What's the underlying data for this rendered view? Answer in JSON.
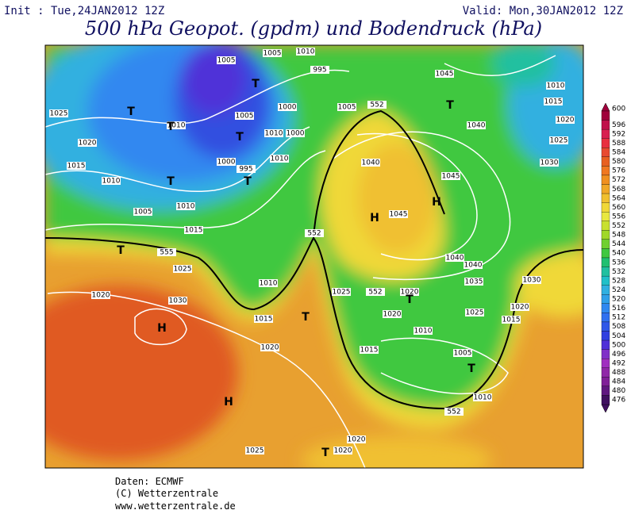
{
  "header": {
    "init": "Init : Tue,24JAN2012 12Z",
    "valid": "Valid: Mon,30JAN2012 12Z",
    "title": "500 hPa Geopot. (gpdm) und Bodendruck (hPa)"
  },
  "colorbar": {
    "levels": [
      600,
      596,
      592,
      588,
      584,
      580,
      576,
      572,
      568,
      564,
      560,
      556,
      552,
      548,
      544,
      540,
      536,
      532,
      528,
      524,
      520,
      516,
      512,
      508,
      504,
      500,
      496,
      492,
      488,
      484,
      480,
      476
    ],
    "colors": [
      "#a0003c",
      "#c0104a",
      "#d82050",
      "#e83040",
      "#e84a30",
      "#e86020",
      "#f07820",
      "#f09020",
      "#f0a828",
      "#f0c030",
      "#f0d838",
      "#e8e840",
      "#c8e030",
      "#a0d828",
      "#70d030",
      "#40c840",
      "#20c070",
      "#20c0a0",
      "#20c0c8",
      "#30b0e0",
      "#30a0e8",
      "#3088f0",
      "#3070f0",
      "#3058e8",
      "#3040e0",
      "#5030d8",
      "#8030c8",
      "#a030c0",
      "#9028a8",
      "#802098",
      "#601880",
      "#401060"
    ]
  },
  "map": {
    "isobar_labels": [
      1005,
      1005,
      1010,
      995,
      1005,
      552,
      1045,
      1010,
      1015,
      1020,
      1025,
      1010,
      1005,
      1000,
      1010,
      1000,
      1040,
      1025,
      1020,
      1010,
      1000,
      1040,
      1045,
      1030,
      1015,
      1010,
      995,
      1010,
      1045,
      1005,
      1015,
      552,
      555,
      1025,
      1040,
      1040,
      1010,
      1035,
      1030,
      1020,
      1030,
      1025,
      552,
      1020,
      1020,
      1025,
      1015,
      1020,
      1015,
      1010,
      1020,
      1015,
      1005,
      1010,
      552,
      1020,
      1025,
      1020
    ],
    "centers": [
      "T",
      "T",
      "T",
      "T",
      "T",
      "T",
      "T",
      "H",
      "H",
      "T",
      "T",
      "T",
      "H",
      "T",
      "H",
      "T"
    ]
  },
  "footer": {
    "lines": [
      "Daten: ECMWF",
      "(C) Wetterzentrale",
      "www.wetterzentrale.de"
    ]
  }
}
